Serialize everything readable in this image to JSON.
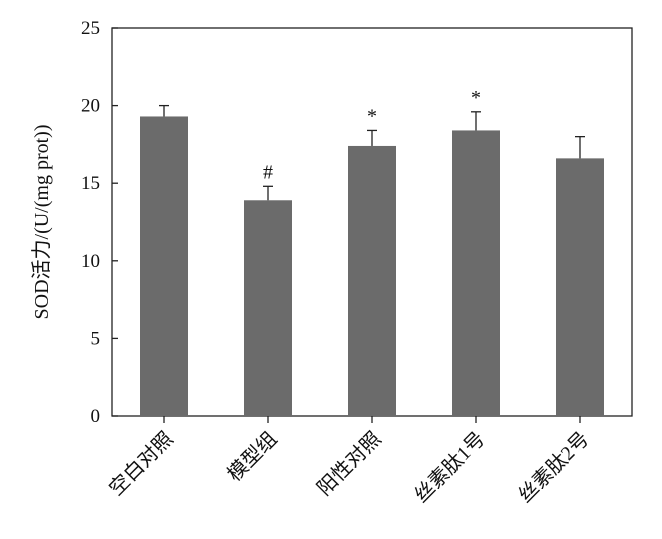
{
  "chart_data": {
    "type": "bar",
    "ylabel": "SOD活力/(U/(mg prot))",
    "xlabel": "",
    "title": "",
    "ylim": [
      0,
      25
    ],
    "yticks": [
      0,
      5,
      10,
      15,
      20,
      25
    ],
    "grid": false,
    "categories": [
      "空白对照",
      "模型组",
      "阳性对照",
      "丝素肽1号",
      "丝素肽2号"
    ],
    "series": [
      {
        "values": [
          19.3,
          13.9,
          17.4,
          18.4,
          16.6
        ],
        "error": [
          0.7,
          0.9,
          1.0,
          1.2,
          1.4
        ],
        "color": "#6b6b6b"
      }
    ],
    "annotations": [
      "",
      "#",
      "*",
      "*",
      ""
    ]
  }
}
